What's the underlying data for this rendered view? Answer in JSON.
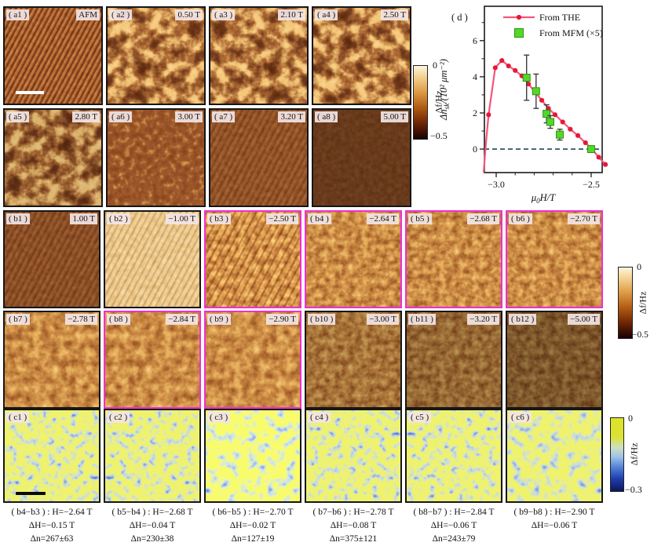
{
  "panels": {
    "a": [
      {
        "label": "( a1 )",
        "value": "AFM"
      },
      {
        "label": "( a2 )",
        "value": "0.50 T"
      },
      {
        "label": "( a3 )",
        "value": "2.10 T"
      },
      {
        "label": "( a4 )",
        "value": "2.50 T"
      },
      {
        "label": "( a5 )",
        "value": "2.80 T"
      },
      {
        "label": "( a6 )",
        "value": "3.00 T"
      },
      {
        "label": "( a7 )",
        "value": "3.20 T"
      },
      {
        "label": "( a8 )",
        "value": "5.00 T"
      }
    ],
    "b": [
      {
        "label": "( b1 )",
        "value": "1.00 T"
      },
      {
        "label": "( b2 )",
        "value": "−1.00 T"
      },
      {
        "label": "( b3 )",
        "value": "−2.50 T"
      },
      {
        "label": "( b4 )",
        "value": "−2.64 T"
      },
      {
        "label": "( b5 )",
        "value": "−2.68 T"
      },
      {
        "label": "( b6 )",
        "value": "−2.70 T"
      },
      {
        "label": "( b7 )",
        "value": "−2.78 T"
      },
      {
        "label": "( b8 )",
        "value": "−2.84 T"
      },
      {
        "label": "( b9 )",
        "value": "−2.90 T"
      },
      {
        "label": "( b10 )",
        "value": "−3.00 T"
      },
      {
        "label": "( b11 )",
        "value": "−3.20 T"
      },
      {
        "label": "( b12 )",
        "value": "−5.00 T"
      }
    ],
    "c": [
      {
        "label": "( c1 )"
      },
      {
        "label": "( c2 )"
      },
      {
        "label": "( c3 )"
      },
      {
        "label": "( c4 )"
      },
      {
        "label": "( c5 )"
      },
      {
        "label": "( c6 )"
      }
    ]
  },
  "colorbars": {
    "ab_top": "0",
    "ab_label": "Δf/Hz",
    "ab_bottom": "−0.5",
    "c_top": "0",
    "c_label": "Δf/Hz",
    "c_bottom": "−0.3"
  },
  "annotations": [
    {
      "line1": "( b4−b3 ) : H=−2.64 T",
      "line2": "ΔH=−0.15 T",
      "line3": "Δn=267±63"
    },
    {
      "line1": "( b5−b4 ) : H=−2.68 T",
      "line2": "ΔH=−0.04 T",
      "line3": "Δn=230±38"
    },
    {
      "line1": "( b6−b5 ) : H=−2.70 T",
      "line2": "ΔH=−0.02 T",
      "line3": "Δn=127±19"
    },
    {
      "line1": "( b7−b6 ) : H=−2.78 T",
      "line2": "ΔH=−0.08 T",
      "line3": "Δn=375±121"
    },
    {
      "line1": "( b8−b7 ) : H=−2.84 T",
      "line2": "ΔH=−0.06 T",
      "line3": "Δn=243±79"
    },
    {
      "line1": "( b9−b8 ) : H=−2.90 T",
      "line2": "ΔH=−0.06 T",
      "line3": ""
    }
  ],
  "accent_colors": {
    "highlight_border": "#ee2fd1",
    "panel_dark": "#2a0902",
    "panel_light": "#eba74e",
    "c_background": "#dde32a",
    "c_spots": "#1f3fae"
  },
  "chart_data": {
    "type": "line",
    "panel_label": "( d )",
    "xlabel_parts": [
      "μ",
      "0",
      "H/T"
    ],
    "ylabel_parts": [
      "Δn",
      "sk",
      "/(10² μm⁻²)"
    ],
    "xlim": [
      -3.062,
      -2.442
    ],
    "ylim": [
      -1.3,
      7.9
    ],
    "xticks": [
      -3.0,
      -2.5
    ],
    "xtick_labels": [
      "−3.0",
      "−2.5"
    ],
    "xticks_minor": [
      -2.9,
      -2.8,
      -2.7,
      -2.6
    ],
    "yticks": [
      0,
      2,
      4,
      6
    ],
    "ytick_labels": [
      "0",
      "2",
      "4",
      "6"
    ],
    "yticks_minor": [
      1,
      3,
      5,
      7
    ],
    "zero_line": 0,
    "legend_position": "top-inside",
    "grid": false,
    "colors": {
      "curve": "#f4557c",
      "curve_marker": "#e51937",
      "mfm_fill": "#53d829",
      "mfm_edge": "#2f9210",
      "error_bar": "#3d3d3d",
      "zero_line": "#40616c"
    },
    "series": [
      {
        "name": "From THE",
        "style": "line+circle",
        "lead": [
          [
            -3.066,
            -1.3
          ],
          [
            -3.054,
            0.3
          ],
          [
            -3.047,
            1.1
          ]
        ],
        "x": [
          -3.04,
          -3.005,
          -2.97,
          -2.935,
          -2.9,
          -2.865,
          -2.83,
          -2.795,
          -2.76,
          -2.725,
          -2.69,
          -2.65,
          -2.61,
          -2.57,
          -2.53,
          -2.5,
          -2.46,
          -2.425
        ],
        "y": [
          1.9,
          4.5,
          4.9,
          4.6,
          4.35,
          4.05,
          3.6,
          3.15,
          2.7,
          2.25,
          1.9,
          1.5,
          1.1,
          0.75,
          0.35,
          0.05,
          -0.45,
          -0.85
        ]
      },
      {
        "name": "From MFM (×5)",
        "style": "square+errorbar",
        "x": [
          -2.84,
          -2.79,
          -2.735,
          -2.715,
          -2.665,
          -2.5
        ],
        "y": [
          3.95,
          3.2,
          1.95,
          1.5,
          0.8,
          0.0
        ],
        "err": [
          1.25,
          0.95,
          0.5,
          0.35,
          0.3,
          0.12
        ]
      }
    ]
  }
}
